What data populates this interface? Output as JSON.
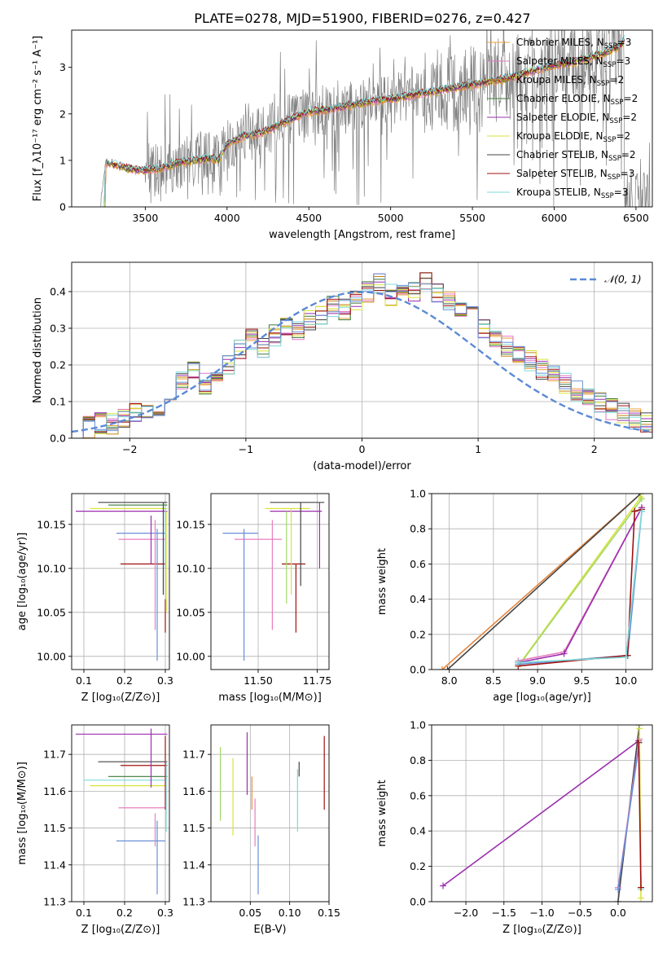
{
  "figure": {
    "title": "PLATE=0278, MJD=51900, FIBERID=0276, z=0.427",
    "colors": {
      "chabrier_miles": "#e8a23c",
      "salpeter_miles": "#e377c2",
      "kroupa_miles": "#c98210",
      "chabrier_elodie": "#3a7a3a",
      "salpeter_elodie": "#9b2fae",
      "kroupa_elodie": "#d9e33a",
      "chabrier_stelib": "#444444",
      "salpeter_stelib": "#a01010",
      "kroupa_stelib": "#7fd8d8",
      "data": "#808080",
      "normal": "#5b8ad6",
      "blue_model": "#6a8fd8",
      "pink_model": "#e87fbf",
      "orange_model": "#e6843c",
      "green_model": "#a4d86a"
    }
  },
  "chart_data": [
    {
      "type": "line",
      "panel": "spectrum",
      "xlabel": "wavelength [Angstrom, rest frame]",
      "ylabel": "Flux [f_λ10⁻¹⁷ erg cm⁻² s⁻¹ A⁻¹]",
      "xlim": [
        3050,
        6600
      ],
      "ylim": [
        0,
        3.8
      ],
      "xticks": [
        "3500",
        "4000",
        "4500",
        "5000",
        "5500",
        "6000",
        "6500"
      ],
      "yticks": [
        "0",
        "1",
        "2",
        "3"
      ],
      "grid": false,
      "legend_position": "top-right",
      "legend": [
        "Chabrier MILES, N_SSP=3",
        "Salpeter MILES, N_SSP=3",
        "Kroupa MILES, N_SSP=2",
        "Chabrier ELODIE, N_SSP=2",
        "Salpeter ELODIE, N_SSP=2",
        "Kroupa ELODIE, N_SSP=2",
        "Chabrier STELIB, N_SSP=2",
        "Salpeter STELIB, N_SSP=3",
        "Kroupa STELIB, N_SSP=3"
      ],
      "model_continuum": {
        "x": [
          3220,
          3260,
          3300,
          3400,
          3500,
          3600,
          3700,
          3800,
          3900,
          3950,
          4000,
          4100,
          4200,
          4300,
          4400,
          4500,
          4600,
          4700,
          4800,
          4900,
          5000,
          5100,
          5200,
          5300,
          5400,
          5500,
          5600,
          5700,
          5800,
          5900,
          6000,
          6100,
          6200,
          6300,
          6400,
          6430
        ],
        "y": [
          0.0,
          0.95,
          0.92,
          0.82,
          0.78,
          0.85,
          0.95,
          1.0,
          1.05,
          1.0,
          1.35,
          1.52,
          1.58,
          1.75,
          1.9,
          2.05,
          2.08,
          2.15,
          2.22,
          2.28,
          2.32,
          2.38,
          2.45,
          2.5,
          2.58,
          2.62,
          2.7,
          2.75,
          2.85,
          2.95,
          3.05,
          3.1,
          3.2,
          3.3,
          3.45,
          3.6
        ]
      },
      "data_note_noise_start": 3500
    },
    {
      "type": "bar",
      "panel": "residual-histogram",
      "xlabel": "(data-model)/error",
      "ylabel": "Normed distribution",
      "xlim": [
        -2.5,
        2.5
      ],
      "ylim": [
        0,
        0.48
      ],
      "xticks": [
        "−2",
        "−1",
        "0",
        "1",
        "2"
      ],
      "yticks": [
        "0.0",
        "0.1",
        "0.2",
        "0.3",
        "0.4"
      ],
      "grid": true,
      "legend": [
        "𝒩(0, 1)"
      ],
      "legend_position": "top-right",
      "bin_width": 0.1,
      "bin_centers_start": -2.45,
      "baseline": [
        0.02,
        0.03,
        0.04,
        0.04,
        0.05,
        0.07,
        0.08,
        0.09,
        0.12,
        0.16,
        0.18,
        0.15,
        0.17,
        0.2,
        0.24,
        0.27,
        0.25,
        0.28,
        0.3,
        0.29,
        0.32,
        0.33,
        0.36,
        0.35,
        0.38,
        0.4,
        0.42,
        0.39,
        0.41,
        0.4,
        0.43,
        0.4,
        0.37,
        0.35,
        0.33,
        0.3,
        0.27,
        0.25,
        0.23,
        0.21,
        0.19,
        0.17,
        0.15,
        0.13,
        0.12,
        0.1,
        0.08,
        0.07,
        0.05,
        0.04
      ]
    },
    {
      "type": "scatter",
      "panel": "age-vs-Z",
      "xlabel": "Z [log₁₀(Z/Z⊙)]",
      "ylabel": "age  [log₁₀(age/yr)]",
      "xlim": [
        0.07,
        0.31
      ],
      "ylim": [
        9.985,
        10.185
      ],
      "xticks": [
        "0.1",
        "0.2",
        "0.3"
      ],
      "yticks": [
        "10.00",
        "10.05",
        "10.10",
        "10.15"
      ],
      "grid": true,
      "hlines": [
        {
          "y": 10.175,
          "x0": 0.135,
          "x1": 0.305,
          "c": "chabrier_stelib"
        },
        {
          "y": 10.172,
          "x0": 0.16,
          "x1": 0.305,
          "c": "chabrier_elodie"
        },
        {
          "y": 10.168,
          "x0": 0.115,
          "x1": 0.305,
          "c": "kroupa_elodie"
        },
        {
          "y": 10.165,
          "x0": 0.08,
          "x1": 0.305,
          "c": "salpeter_elodie"
        },
        {
          "y": 10.14,
          "x0": 0.18,
          "x1": 0.3,
          "c": "blue_model"
        },
        {
          "y": 10.133,
          "x0": 0.185,
          "x1": 0.3,
          "c": "pink_model"
        },
        {
          "y": 10.105,
          "x0": 0.19,
          "x1": 0.3,
          "c": "salpeter_stelib"
        }
      ],
      "vlines": [
        {
          "x": 0.265,
          "y0": 10.105,
          "y1": 10.16,
          "c": "salpeter_elodie"
        },
        {
          "x": 0.275,
          "y0": 10.03,
          "y1": 10.155,
          "c": "pink_model"
        },
        {
          "x": 0.28,
          "y0": 9.995,
          "y1": 10.145,
          "c": "blue_model"
        },
        {
          "x": 0.295,
          "y0": 10.07,
          "y1": 10.175,
          "c": "chabrier_stelib"
        },
        {
          "x": 0.3,
          "y0": 10.027,
          "y1": 10.065,
          "c": "salpeter_stelib"
        },
        {
          "x": 0.3,
          "y0": 10.1,
          "y1": 10.17,
          "c": "kroupa_stelib"
        },
        {
          "x": 0.302,
          "y0": 10.05,
          "y1": 10.165,
          "c": "kroupa_elodie"
        }
      ]
    },
    {
      "type": "scatter",
      "panel": "age-vs-mass",
      "xlabel": "mass [log₁₀(M/M⊙)]",
      "ylabel": "",
      "xlim": [
        11.3,
        11.8
      ],
      "ylim": [
        9.985,
        10.185
      ],
      "xticks": [
        "11.50",
        "11.75"
      ],
      "yticks": [
        "10.00",
        "10.05",
        "10.10",
        "10.15"
      ],
      "grid": true,
      "hlines": [
        {
          "y": 10.175,
          "x0": 11.55,
          "x1": 11.78,
          "c": "chabrier_stelib"
        },
        {
          "y": 10.168,
          "x0": 11.53,
          "x1": 11.72,
          "c": "kroupa_elodie"
        },
        {
          "y": 10.165,
          "x0": 11.55,
          "x1": 11.77,
          "c": "salpeter_elodie"
        },
        {
          "y": 10.14,
          "x0": 11.35,
          "x1": 11.5,
          "c": "blue_model"
        },
        {
          "y": 10.133,
          "x0": 11.4,
          "x1": 11.6,
          "c": "pink_model"
        },
        {
          "y": 10.105,
          "x0": 11.6,
          "x1": 11.7,
          "c": "salpeter_stelib"
        }
      ],
      "vlines": [
        {
          "x": 11.44,
          "y0": 9.995,
          "y1": 10.145,
          "c": "blue_model"
        },
        {
          "x": 11.56,
          "y0": 10.03,
          "y1": 10.155,
          "c": "pink_model"
        },
        {
          "x": 11.62,
          "y0": 10.06,
          "y1": 10.165,
          "c": "green_model"
        },
        {
          "x": 11.64,
          "y0": 10.07,
          "y1": 10.168,
          "c": "kroupa_elodie"
        },
        {
          "x": 11.66,
          "y0": 10.027,
          "y1": 10.105,
          "c": "salpeter_stelib"
        },
        {
          "x": 11.68,
          "y0": 10.08,
          "y1": 10.175,
          "c": "chabrier_stelib"
        },
        {
          "x": 11.76,
          "y0": 10.1,
          "y1": 10.175,
          "c": "salpeter_elodie"
        }
      ]
    },
    {
      "type": "line",
      "panel": "mass-weight-vs-age",
      "xlabel": "age  [log₁₀(age/yr)]",
      "ylabel": "mass weight",
      "xlim": [
        7.8,
        10.3
      ],
      "ylim": [
        0,
        1.0
      ],
      "xticks": [
        "8.0",
        "8.5",
        "9.0",
        "9.5",
        "10.0"
      ],
      "yticks": [
        "0.0",
        "0.2",
        "0.4",
        "0.6",
        "0.8",
        "1.0"
      ],
      "grid": true,
      "series": [
        {
          "c": "orange_model",
          "x": [
            7.92,
            10.17
          ],
          "y": [
            0.0,
            1.0
          ]
        },
        {
          "c": "chabrier_stelib",
          "x": [
            7.98,
            10.17
          ],
          "y": [
            0.0,
            1.0
          ]
        },
        {
          "c": "kroupa_elodie",
          "x": [
            8.78,
            10.17
          ],
          "y": [
            0.02,
            0.98
          ]
        },
        {
          "c": "green_model",
          "x": [
            8.8,
            10.18
          ],
          "y": [
            0.03,
            0.97
          ]
        },
        {
          "c": "pink_model",
          "x": [
            8.78,
            9.3,
            10.18
          ],
          "y": [
            0.05,
            0.1,
            0.92
          ]
        },
        {
          "c": "salpeter_elodie",
          "x": [
            8.78,
            9.3,
            10.18
          ],
          "y": [
            0.04,
            0.09,
            0.92
          ]
        },
        {
          "c": "blue_model",
          "x": [
            8.78,
            10.02,
            10.18
          ],
          "y": [
            0.03,
            0.08,
            0.9
          ]
        },
        {
          "c": "salpeter_stelib",
          "x": [
            8.78,
            10.02,
            10.1,
            10.18
          ],
          "y": [
            0.02,
            0.08,
            0.9,
            0.91
          ]
        },
        {
          "c": "kroupa_stelib",
          "x": [
            8.78,
            10.0,
            10.18
          ],
          "y": [
            0.04,
            0.07,
            0.9
          ]
        }
      ]
    },
    {
      "type": "scatter",
      "panel": "mass-vs-Z",
      "xlabel": "Z [log₁₀(Z/Z⊙)]",
      "ylabel": "mass [log₁₀(M/M⊙)]",
      "xlim": [
        0.07,
        0.31
      ],
      "ylim": [
        11.3,
        11.78
      ],
      "xticks": [
        "0.1",
        "0.2",
        "0.3"
      ],
      "yticks": [
        "11.3",
        "11.4",
        "11.5",
        "11.6",
        "11.7"
      ],
      "grid": true,
      "hlines": [
        {
          "y": 11.755,
          "x0": 0.08,
          "x1": 0.305,
          "c": "salpeter_elodie"
        },
        {
          "y": 11.68,
          "x0": 0.135,
          "x1": 0.305,
          "c": "chabrier_stelib"
        },
        {
          "y": 11.67,
          "x0": 0.19,
          "x1": 0.305,
          "c": "salpeter_stelib"
        },
        {
          "y": 11.64,
          "x0": 0.16,
          "x1": 0.305,
          "c": "chabrier_elodie"
        },
        {
          "y": 11.63,
          "x0": 0.1,
          "x1": 0.3,
          "c": "kroupa_stelib"
        },
        {
          "y": 11.615,
          "x0": 0.115,
          "x1": 0.3,
          "c": "kroupa_elodie"
        },
        {
          "y": 11.555,
          "x0": 0.185,
          "x1": 0.3,
          "c": "pink_model"
        },
        {
          "y": 11.465,
          "x0": 0.18,
          "x1": 0.3,
          "c": "blue_model"
        }
      ],
      "vlines": [
        {
          "x": 0.265,
          "y0": 11.61,
          "y1": 11.77,
          "c": "salpeter_elodie"
        },
        {
          "x": 0.275,
          "y0": 11.45,
          "y1": 11.54,
          "c": "pink_model"
        },
        {
          "x": 0.28,
          "y0": 11.32,
          "y1": 11.52,
          "c": "blue_model"
        },
        {
          "x": 0.3,
          "y0": 11.55,
          "y1": 11.75,
          "c": "salpeter_stelib"
        },
        {
          "x": 0.302,
          "y0": 11.49,
          "y1": 11.68,
          "c": "kroupa_stelib"
        }
      ]
    },
    {
      "type": "scatter",
      "panel": "mass-vs-EBV",
      "xlabel": "E(B-V)",
      "ylabel": "",
      "xlim": [
        0.0,
        0.15
      ],
      "ylim": [
        11.3,
        11.78
      ],
      "xticks": [
        "0.05",
        "0.10",
        "0.15"
      ],
      "yticks": [
        "11.3",
        "11.4",
        "11.5",
        "11.6",
        "11.7"
      ],
      "grid": true,
      "vlines": [
        {
          "x": 0.012,
          "y0": 11.52,
          "y1": 11.72,
          "c": "green_model"
        },
        {
          "x": 0.028,
          "y0": 11.48,
          "y1": 11.69,
          "c": "kroupa_elodie"
        },
        {
          "x": 0.046,
          "y0": 11.59,
          "y1": 11.76,
          "c": "salpeter_elodie"
        },
        {
          "x": 0.052,
          "y0": 11.55,
          "y1": 11.64,
          "c": "orange_model"
        },
        {
          "x": 0.056,
          "y0": 11.45,
          "y1": 11.58,
          "c": "pink_model"
        },
        {
          "x": 0.06,
          "y0": 11.32,
          "y1": 11.48,
          "c": "blue_model"
        },
        {
          "x": 0.11,
          "y0": 11.49,
          "y1": 11.66,
          "c": "kroupa_stelib"
        },
        {
          "x": 0.112,
          "y0": 11.64,
          "y1": 11.68,
          "c": "chabrier_stelib"
        },
        {
          "x": 0.144,
          "y0": 11.55,
          "y1": 11.75,
          "c": "salpeter_stelib"
        }
      ]
    },
    {
      "type": "line",
      "panel": "mass-weight-vs-Z",
      "xlabel": "Z [log₁₀(Z/Z⊙)]",
      "ylabel": "mass weight",
      "xlim": [
        -2.45,
        0.45
      ],
      "ylim": [
        0,
        1.0
      ],
      "xticks": [
        "−2.0",
        "−1.5",
        "−1.0",
        "−0.5",
        "0.0"
      ],
      "yticks": [
        "0.0",
        "0.2",
        "0.4",
        "0.6",
        "0.8",
        "1.0"
      ],
      "grid": true,
      "series": [
        {
          "c": "salpeter_elodie",
          "x": [
            -2.3,
            0.27
          ],
          "y": [
            0.09,
            0.91
          ]
        },
        {
          "c": "chabrier_stelib",
          "x": [
            0.0,
            0.28
          ],
          "y": [
            0.0,
            1.0
          ]
        },
        {
          "c": "pink_model",
          "x": [
            0.0,
            0.28
          ],
          "y": [
            0.08,
            0.92
          ]
        },
        {
          "c": "blue_model",
          "x": [
            0.0,
            0.28
          ],
          "y": [
            0.07,
            0.9
          ]
        },
        {
          "c": "kroupa_stelib",
          "x": [
            0.28,
            0.3
          ],
          "y": [
            0.9,
            0.07
          ]
        },
        {
          "c": "kroupa_elodie",
          "x": [
            0.28,
            0.3
          ],
          "y": [
            0.98,
            0.02
          ]
        },
        {
          "c": "salpeter_stelib",
          "x": [
            0.27,
            0.3
          ],
          "y": [
            0.9,
            0.08
          ]
        }
      ]
    }
  ]
}
